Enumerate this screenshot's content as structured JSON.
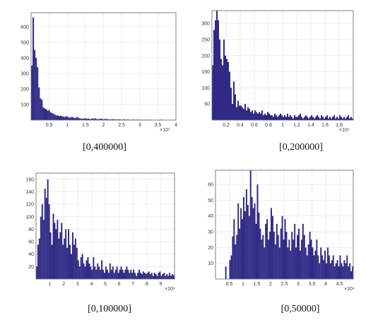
{
  "chart_data": [
    {
      "type": "bar",
      "caption": "[0,400000]",
      "x_tick_labels": [
        "0.5",
        "1",
        "1.5",
        "2",
        "2.5",
        "3",
        "3.5",
        "4"
      ],
      "x_multiplier": "×10⁵",
      "y_tick_labels": [
        "100",
        "200",
        "300",
        "400",
        "500",
        "600"
      ],
      "xlim": [
        0,
        400000
      ],
      "ylim": [
        0,
        690
      ],
      "bin_width": 4000,
      "grid": true,
      "bar_color": "#2e2a85",
      "values": [
        350,
        660,
        450,
        400,
        340,
        210,
        140,
        130,
        80,
        75,
        70,
        60,
        65,
        50,
        45,
        40,
        35,
        30,
        30,
        25,
        28,
        25,
        22,
        20,
        25,
        20,
        15,
        18,
        20,
        15,
        12,
        20,
        15,
        12,
        10,
        8,
        10,
        12,
        8,
        10,
        6,
        8,
        10,
        8,
        12,
        6,
        6,
        8,
        10,
        5,
        6,
        8,
        6,
        5,
        4,
        5,
        6,
        4,
        5,
        3,
        5,
        4,
        3,
        4,
        5,
        3,
        4,
        3,
        2,
        3,
        4,
        3,
        2,
        4,
        3,
        2,
        3,
        2,
        2,
        3,
        2,
        2,
        3,
        2,
        1,
        2,
        2,
        1,
        2,
        3,
        2,
        1,
        2,
        1,
        2,
        1,
        1,
        2,
        1,
        1
      ]
    },
    {
      "type": "bar",
      "caption": "[0,200000]",
      "x_tick_labels": [
        "0.2",
        "0.4",
        "0.6",
        "0.8",
        "1",
        "1.2",
        "1.4",
        "1.6",
        "1.8"
      ],
      "x_multiplier": "×10⁵",
      "y_tick_labels": [
        "50",
        "100",
        "150",
        "200",
        "250",
        "300"
      ],
      "xlim": [
        0,
        200000
      ],
      "ylim": [
        0,
        340
      ],
      "bin_width": 2000,
      "grid": true,
      "bar_color": "#2e2a85",
      "values": [
        170,
        280,
        310,
        340,
        310,
        250,
        190,
        170,
        250,
        200,
        190,
        180,
        150,
        100,
        50,
        120,
        80,
        40,
        60,
        45,
        45,
        40,
        35,
        50,
        30,
        40,
        35,
        25,
        30,
        20,
        30,
        25,
        20,
        25,
        20,
        30,
        15,
        20,
        15,
        25,
        20,
        15,
        15,
        10,
        20,
        15,
        10,
        15,
        20,
        15,
        10,
        15,
        10,
        20,
        10,
        15,
        10,
        5,
        15,
        10,
        10,
        15,
        20,
        10,
        5,
        10,
        15,
        10,
        5,
        10,
        15,
        10,
        5,
        10,
        15,
        10,
        5,
        15,
        10,
        5,
        10,
        15,
        5,
        10,
        5,
        10,
        15,
        5,
        10,
        5,
        15,
        10,
        5,
        10,
        5,
        10,
        15,
        5,
        10,
        5
      ]
    },
    {
      "type": "bar",
      "caption": "[0,100000]",
      "x_tick_labels": [
        "1",
        "2",
        "3",
        "4",
        "5",
        "6",
        "7",
        "8",
        "9"
      ],
      "x_multiplier": "×10⁴",
      "y_tick_labels": [
        "20",
        "40",
        "60",
        "80",
        "100",
        "120",
        "140",
        "160"
      ],
      "xlim": [
        0,
        100000
      ],
      "ylim": [
        0,
        170
      ],
      "bin_width": 1000,
      "grid": true,
      "bar_color": "#2e2a85",
      "values": [
        20,
        55,
        65,
        100,
        120,
        95,
        145,
        130,
        160,
        120,
        75,
        55,
        105,
        90,
        80,
        95,
        65,
        75,
        90,
        55,
        65,
        80,
        50,
        80,
        55,
        40,
        75,
        55,
        65,
        50,
        30,
        20,
        35,
        40,
        25,
        20,
        30,
        35,
        25,
        20,
        15,
        35,
        20,
        15,
        25,
        20,
        15,
        30,
        15,
        10,
        20,
        15,
        10,
        25,
        15,
        20,
        10,
        15,
        20,
        10,
        15,
        20,
        15,
        10,
        15,
        20,
        15,
        10,
        15,
        10,
        15,
        10,
        5,
        10,
        15,
        10,
        8,
        12,
        10,
        8,
        10,
        12,
        8,
        10,
        5,
        10,
        8,
        5,
        10,
        12,
        5,
        8,
        10,
        5,
        8,
        5,
        10,
        5,
        8,
        6
      ]
    },
    {
      "type": "bar",
      "caption": "[0,50000]",
      "x_tick_labels": [
        "0.5",
        "1",
        "1.5",
        "2",
        "2.5",
        "3",
        "3.5",
        "4",
        "4.5"
      ],
      "x_multiplier": "×10⁴",
      "y_tick_labels": [
        "10",
        "20",
        "30",
        "40",
        "50",
        "60"
      ],
      "xlim": [
        0,
        50000
      ],
      "ylim": [
        0,
        69
      ],
      "bin_width": 500,
      "grid": true,
      "bar_color": "#2e2a85",
      "values": [
        0,
        0,
        0,
        0,
        0,
        0,
        0,
        8,
        0,
        0,
        12,
        15,
        27,
        38,
        22,
        28,
        48,
        32,
        45,
        38,
        52,
        43,
        57,
        47,
        40,
        69,
        52,
        45,
        48,
        35,
        60,
        42,
        32,
        25,
        28,
        20,
        35,
        38,
        25,
        30,
        45,
        40,
        30,
        22,
        35,
        28,
        20,
        32,
        40,
        25,
        38,
        30,
        20,
        25,
        18,
        30,
        25,
        35,
        20,
        28,
        32,
        18,
        25,
        35,
        28,
        20,
        15,
        22,
        30,
        25,
        20,
        15,
        18,
        25,
        15,
        10,
        20,
        15,
        12,
        18,
        10,
        20,
        15,
        10,
        12,
        15,
        8,
        10,
        12,
        8,
        15,
        10,
        8,
        12,
        10,
        15,
        8,
        10,
        5,
        8
      ]
    }
  ]
}
